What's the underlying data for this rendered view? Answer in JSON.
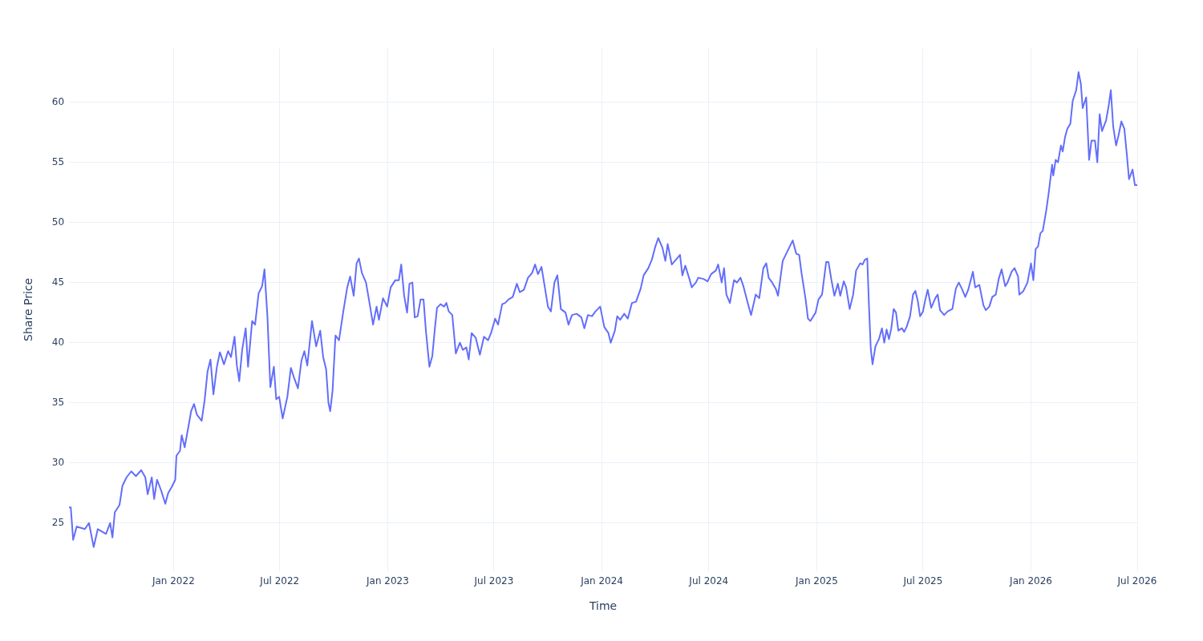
{
  "chart_data": {
    "type": "line",
    "xlabel": "Time",
    "ylabel": "Share Price",
    "xlim": [
      "2021-07-07",
      "2026-07-01"
    ],
    "xticks": [
      {
        "value": "2022-01-01",
        "label": "Jan 2022"
      },
      {
        "value": "2022-07-01",
        "label": "Jul 2022"
      },
      {
        "value": "2023-01-01",
        "label": "Jan 2023"
      },
      {
        "value": "2023-07-01",
        "label": "Jul 2023"
      },
      {
        "value": "2024-01-01",
        "label": "Jan 2024"
      },
      {
        "value": "2024-07-01",
        "label": "Jul 2024"
      },
      {
        "value": "2025-01-01",
        "label": "Jan 2025"
      },
      {
        "value": "2025-07-01",
        "label": "Jul 2025"
      },
      {
        "value": "2026-01-01",
        "label": "Jan 2026"
      },
      {
        "value": "2026-07-01",
        "label": "Jul 2026"
      }
    ],
    "ylim": [
      21,
      64.5
    ],
    "yticks": [
      25,
      30,
      35,
      40,
      45,
      50,
      55,
      60
    ],
    "grid": true,
    "legend": false,
    "marker": "none",
    "line_style": "solid",
    "series": [
      {
        "color": "#636efa",
        "x": [
          "2021-07-07",
          "2021-07-10",
          "2021-07-14",
          "2021-07-20",
          "2021-08-03",
          "2021-08-10",
          "2021-08-18",
          "2021-08-25",
          "2021-09-08",
          "2021-09-15",
          "2021-09-19",
          "2021-09-23",
          "2021-10-01",
          "2021-10-06",
          "2021-10-13",
          "2021-10-21",
          "2021-10-29",
          "2021-11-07",
          "2021-11-14",
          "2021-11-18",
          "2021-11-25",
          "2021-11-29",
          "2021-12-04",
          "2021-12-11",
          "2021-12-18",
          "2021-12-23",
          "2021-12-29",
          "2022-01-04",
          "2022-01-06",
          "2022-01-12",
          "2022-01-15",
          "2022-01-20",
          "2022-01-26",
          "2022-01-31",
          "2022-02-05",
          "2022-02-10",
          "2022-02-18",
          "2022-02-23",
          "2022-02-28",
          "2022-03-05",
          "2022-03-10",
          "2022-03-16",
          "2022-03-21",
          "2022-03-28",
          "2022-04-04",
          "2022-04-09",
          "2022-04-15",
          "2022-04-19",
          "2022-04-23",
          "2022-04-28",
          "2022-05-04",
          "2022-05-08",
          "2022-05-15",
          "2022-05-20",
          "2022-05-26",
          "2022-06-01",
          "2022-06-05",
          "2022-06-10",
          "2022-06-15",
          "2022-06-21",
          "2022-06-25",
          "2022-06-30",
          "2022-07-06",
          "2022-07-14",
          "2022-07-20",
          "2022-07-26",
          "2022-08-01",
          "2022-08-07",
          "2022-08-12",
          "2022-08-17",
          "2022-08-25",
          "2022-09-01",
          "2022-09-08",
          "2022-09-13",
          "2022-09-18",
          "2022-09-22",
          "2022-09-25",
          "2022-09-29",
          "2022-10-04",
          "2022-10-10",
          "2022-10-17",
          "2022-10-24",
          "2022-10-29",
          "2022-11-04",
          "2022-11-09",
          "2022-11-13",
          "2022-11-18",
          "2022-11-25",
          "2022-12-02",
          "2022-12-07",
          "2022-12-13",
          "2022-12-17",
          "2022-12-24",
          "2022-12-31",
          "2023-01-06",
          "2023-01-14",
          "2023-01-20",
          "2023-01-24",
          "2023-01-29",
          "2023-02-03",
          "2023-02-07",
          "2023-02-12",
          "2023-02-16",
          "2023-02-21",
          "2023-02-26",
          "2023-03-03",
          "2023-03-07",
          "2023-03-13",
          "2023-03-18",
          "2023-03-22",
          "2023-03-26",
          "2023-04-01",
          "2023-04-07",
          "2023-04-11",
          "2023-04-15",
          "2023-04-21",
          "2023-04-27",
          "2023-05-04",
          "2023-05-09",
          "2023-05-15",
          "2023-05-19",
          "2023-05-24",
          "2023-05-31",
          "2023-06-07",
          "2023-06-14",
          "2023-06-21",
          "2023-06-26",
          "2023-07-03",
          "2023-07-08",
          "2023-07-15",
          "2023-07-20",
          "2023-07-26",
          "2023-08-02",
          "2023-08-09",
          "2023-08-14",
          "2023-08-21",
          "2023-08-28",
          "2023-09-04",
          "2023-09-09",
          "2023-09-14",
          "2023-09-20",
          "2023-09-25",
          "2023-10-01",
          "2023-10-06",
          "2023-10-12",
          "2023-10-17",
          "2023-10-23",
          "2023-10-31",
          "2023-11-05",
          "2023-11-11",
          "2023-11-19",
          "2023-11-27",
          "2023-12-02",
          "2023-12-08",
          "2023-12-15",
          "2023-12-21",
          "2023-12-29",
          "2024-01-05",
          "2024-01-12",
          "2024-01-16",
          "2024-01-23",
          "2024-01-27",
          "2024-02-01",
          "2024-02-08",
          "2024-02-14",
          "2024-02-21",
          "2024-02-28",
          "2024-03-07",
          "2024-03-12",
          "2024-03-20",
          "2024-03-26",
          "2024-04-01",
          "2024-04-06",
          "2024-04-13",
          "2024-04-18",
          "2024-04-22",
          "2024-04-29",
          "2024-05-06",
          "2024-05-13",
          "2024-05-17",
          "2024-05-22",
          "2024-05-29",
          "2024-06-02",
          "2024-06-09",
          "2024-06-13",
          "2024-06-22",
          "2024-06-29",
          "2024-07-05",
          "2024-07-13",
          "2024-07-17",
          "2024-07-23",
          "2024-07-27",
          "2024-07-31",
          "2024-08-06",
          "2024-08-13",
          "2024-08-18",
          "2024-08-24",
          "2024-08-29",
          "2024-09-06",
          "2024-09-11",
          "2024-09-19",
          "2024-09-25",
          "2024-10-02",
          "2024-10-07",
          "2024-10-11",
          "2024-10-17",
          "2024-10-23",
          "2024-10-27",
          "2024-11-04",
          "2024-11-09",
          "2024-11-16",
          "2024-11-21",
          "2024-11-27",
          "2024-12-02",
          "2024-12-06",
          "2024-12-13",
          "2024-12-17",
          "2024-12-21",
          "2024-12-30",
          "2025-01-04",
          "2025-01-10",
          "2025-01-17",
          "2025-01-21",
          "2025-01-26",
          "2025-01-31",
          "2025-02-06",
          "2025-02-10",
          "2025-02-16",
          "2025-02-20",
          "2025-02-26",
          "2025-03-04",
          "2025-03-09",
          "2025-03-16",
          "2025-03-20",
          "2025-03-24",
          "2025-03-28",
          "2025-03-31",
          "2025-04-03",
          "2025-04-06",
          "2025-04-11",
          "2025-04-17",
          "2025-04-22",
          "2025-04-26",
          "2025-04-30",
          "2025-05-04",
          "2025-05-08",
          "2025-05-12",
          "2025-05-16",
          "2025-05-20",
          "2025-05-26",
          "2025-05-30",
          "2025-06-03",
          "2025-06-09",
          "2025-06-14",
          "2025-06-18",
          "2025-06-22",
          "2025-06-26",
          "2025-07-01",
          "2025-07-05",
          "2025-07-09",
          "2025-07-15",
          "2025-07-22",
          "2025-07-26",
          "2025-07-30",
          "2025-08-06",
          "2025-08-12",
          "2025-08-20",
          "2025-08-26",
          "2025-08-31",
          "2025-09-06",
          "2025-09-11",
          "2025-09-16",
          "2025-09-24",
          "2025-09-28",
          "2025-10-05",
          "2025-10-12",
          "2025-10-16",
          "2025-10-22",
          "2025-10-27",
          "2025-11-02",
          "2025-11-07",
          "2025-11-12",
          "2025-11-18",
          "2025-11-22",
          "2025-11-29",
          "2025-12-04",
          "2025-12-10",
          "2025-12-12",
          "2025-12-19",
          "2025-12-26",
          "2026-01-01",
          "2026-01-05",
          "2026-01-09",
          "2026-01-13",
          "2026-01-17",
          "2026-01-21",
          "2026-01-27",
          "2026-01-31",
          "2026-02-06",
          "2026-02-08",
          "2026-02-12",
          "2026-02-16",
          "2026-02-21",
          "2026-02-24",
          "2026-02-28",
          "2026-03-04",
          "2026-03-09",
          "2026-03-13",
          "2026-03-19",
          "2026-03-23",
          "2026-03-27",
          "2026-03-30",
          "2026-04-05",
          "2026-04-10",
          "2026-04-14",
          "2026-04-20",
          "2026-04-24",
          "2026-04-28",
          "2026-05-02",
          "2026-05-09",
          "2026-05-13",
          "2026-05-17",
          "2026-05-21",
          "2026-05-26",
          "2026-05-30",
          "2026-06-04",
          "2026-06-09",
          "2026-06-13",
          "2026-06-17",
          "2026-06-23",
          "2026-06-27",
          "2026-07-01"
        ],
        "values": [
          26.3,
          26.3,
          23.6,
          24.7,
          24.5,
          25.0,
          23.0,
          24.5,
          24.1,
          25.0,
          23.8,
          25.9,
          26.5,
          28.1,
          28.8,
          29.3,
          28.9,
          29.4,
          28.8,
          27.4,
          28.8,
          27.0,
          28.6,
          27.7,
          26.6,
          27.5,
          28.0,
          28.6,
          30.6,
          31.0,
          32.3,
          31.3,
          32.9,
          34.3,
          34.9,
          34.0,
          33.5,
          35.2,
          37.6,
          38.6,
          35.7,
          38.0,
          39.2,
          38.2,
          39.3,
          38.8,
          40.5,
          38.1,
          36.8,
          39.4,
          41.2,
          38.0,
          41.8,
          41.5,
          44.1,
          44.7,
          46.1,
          42.2,
          36.3,
          38.0,
          35.3,
          35.5,
          33.7,
          35.5,
          37.9,
          37.0,
          36.2,
          38.5,
          39.3,
          38.1,
          41.8,
          39.7,
          41.0,
          38.8,
          37.8,
          35.0,
          34.3,
          36.0,
          40.6,
          40.2,
          42.5,
          44.6,
          45.5,
          43.9,
          46.6,
          47.0,
          45.8,
          45.0,
          43.0,
          41.5,
          43.0,
          41.9,
          43.7,
          43.0,
          44.6,
          45.2,
          45.2,
          46.5,
          43.9,
          42.5,
          44.9,
          45.0,
          42.1,
          42.2,
          43.6,
          43.6,
          41.0,
          38.0,
          38.9,
          41.0,
          42.9,
          43.2,
          43.0,
          43.3,
          42.6,
          42.3,
          39.1,
          40.0,
          39.4,
          39.6,
          38.6,
          40.8,
          40.4,
          39.0,
          40.5,
          40.2,
          40.8,
          42.0,
          41.5,
          43.2,
          43.3,
          43.6,
          43.8,
          44.9,
          44.2,
          44.4,
          45.4,
          45.8,
          46.5,
          45.7,
          46.3,
          44.8,
          43.0,
          42.6,
          45.0,
          45.6,
          42.8,
          42.5,
          41.5,
          42.3,
          42.4,
          42.1,
          41.2,
          42.3,
          42.2,
          42.6,
          43.0,
          41.3,
          40.8,
          40.0,
          41.0,
          42.2,
          41.9,
          42.4,
          42.0,
          43.3,
          43.4,
          44.5,
          45.6,
          46.2,
          46.9,
          48.0,
          48.7,
          47.9,
          46.8,
          48.2,
          46.5,
          46.9,
          47.3,
          45.6,
          46.4,
          45.3,
          44.6,
          45.0,
          45.4,
          45.3,
          45.1,
          45.7,
          46.0,
          46.5,
          45.0,
          46.2,
          44.0,
          43.3,
          45.2,
          45.0,
          45.4,
          44.7,
          43.2,
          42.3,
          44.0,
          43.7,
          46.2,
          46.6,
          45.4,
          45.0,
          44.5,
          43.9,
          46.8,
          47.3,
          48.0,
          48.5,
          47.4,
          47.3,
          45.8,
          43.6,
          42.0,
          41.8,
          42.5,
          43.6,
          44.0,
          46.7,
          46.7,
          45.2,
          43.9,
          44.9,
          43.9,
          45.1,
          44.6,
          42.8,
          44.0,
          46.0,
          46.6,
          46.5,
          46.9,
          47.0,
          43.0,
          39.5,
          38.2,
          39.7,
          40.3,
          41.2,
          40.0,
          41.1,
          40.3,
          41.2,
          42.8,
          42.5,
          41.0,
          41.2,
          40.9,
          41.3,
          42.2,
          44.0,
          44.3,
          43.5,
          42.2,
          42.6,
          43.6,
          44.4,
          42.9,
          43.7,
          44.0,
          42.7,
          42.3,
          42.6,
          42.8,
          44.5,
          45.0,
          44.4,
          43.8,
          44.4,
          45.9,
          44.6,
          44.8,
          43.1,
          42.7,
          43.0,
          43.8,
          44.0,
          45.3,
          46.1,
          44.7,
          45.0,
          45.9,
          46.2,
          45.5,
          44.0,
          44.3,
          45.0,
          46.6,
          45.2,
          47.8,
          48.0,
          49.1,
          49.3,
          51.0,
          52.4,
          54.8,
          53.9,
          55.2,
          55.0,
          56.4,
          55.9,
          57.1,
          57.8,
          58.2,
          60.1,
          61.0,
          62.5,
          61.5,
          59.5,
          60.4,
          55.2,
          56.8,
          56.8,
          55.0,
          59.0,
          57.6,
          58.5,
          59.6,
          61.0,
          58.0,
          56.4,
          57.2,
          58.4,
          57.8,
          55.8,
          53.6,
          54.4,
          53.1,
          53.1
        ]
      }
    ]
  }
}
